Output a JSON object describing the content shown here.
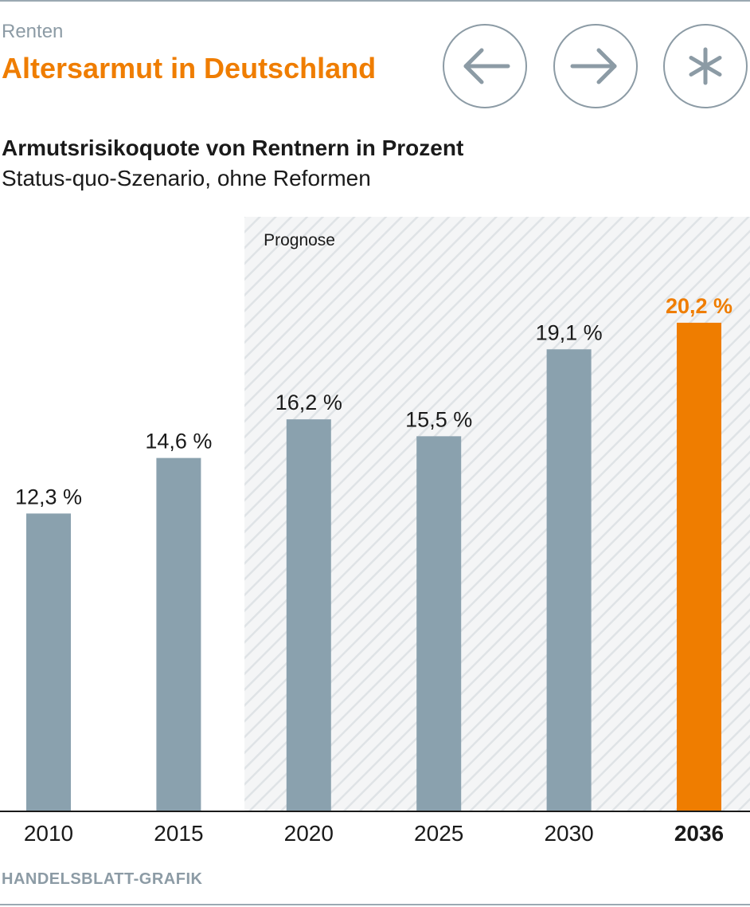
{
  "header": {
    "kicker": "Renten",
    "title": "Altersarmut in Deutschland"
  },
  "nav": {
    "back_icon": "arrow-left-icon",
    "forward_icon": "arrow-right-icon",
    "star_icon": "asterisk-icon"
  },
  "colors": {
    "accent": "#ef7d00",
    "bar": "#8aa1ae",
    "muted": "#8c9ba5"
  },
  "chart_data": {
    "type": "bar",
    "title": "Armutsrisikoquote von Rentnern in Prozent",
    "subtitle": "Status-quo-Szenario, ohne Reformen",
    "categories": [
      "2010",
      "2015",
      "2020",
      "2025",
      "2030",
      "2036"
    ],
    "values": [
      12.3,
      14.6,
      16.2,
      15.5,
      19.1,
      20.2
    ],
    "labels": [
      "12,3 %",
      "14,6 %",
      "16,2 %",
      "15,5 %",
      "19,1 %",
      "20,2 %"
    ],
    "highlight_index": 5,
    "forecast_label": "Prognose",
    "forecast_from": "2020",
    "ylim": [
      0,
      30
    ],
    "xlabel": "",
    "ylabel": ""
  },
  "footer": {
    "source": "HANDELSBLATT-GRAFIK"
  }
}
